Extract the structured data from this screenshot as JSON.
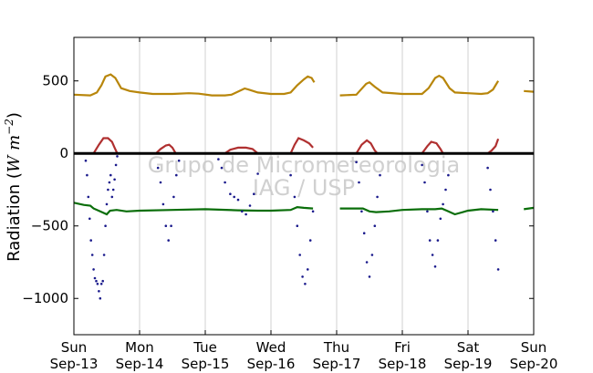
{
  "chart_data": {
    "type": "scatter",
    "title": "",
    "ylabel_text": "Radiation (",
    "ylabel_unit": "W m",
    "ylabel_exp": "−2",
    "ylabel_close": ")",
    "watermark": [
      "Grupo de Micrometeorologia",
      "IAG / USP"
    ],
    "xlim": [
      0,
      7
    ],
    "ylim": [
      -1250,
      800
    ],
    "grid": "vertical",
    "zero_line": true,
    "yticks": [
      {
        "value": 500,
        "label": "500"
      },
      {
        "value": 0,
        "label": "0"
      },
      {
        "value": -500,
        "label": "−500"
      },
      {
        "value": -1000,
        "label": "−1000"
      }
    ],
    "xticks": [
      {
        "value": 0,
        "day": "Sun",
        "date": "Sep-13"
      },
      {
        "value": 1,
        "day": "Mon",
        "date": "Sep-14"
      },
      {
        "value": 2,
        "day": "Tue",
        "date": "Sep-15"
      },
      {
        "value": 3,
        "day": "Wed",
        "date": "Sep-16"
      },
      {
        "value": 4,
        "day": "Thu",
        "date": "Sep-17"
      },
      {
        "value": 5,
        "day": "Fri",
        "date": "Sep-18"
      },
      {
        "value": 6,
        "day": "Sat",
        "date": "Sep-19"
      },
      {
        "value": 7,
        "day": "Sun",
        "date": "Sep-20"
      }
    ],
    "series": [
      {
        "key": "incoming_longwave",
        "color": "#b8860b",
        "style": "line",
        "segments": [
          [
            [
              0,
              405
            ],
            [
              0.25,
              400
            ],
            [
              0.35,
              420
            ],
            [
              0.42,
              470
            ],
            [
              0.48,
              530
            ],
            [
              0.56,
              545
            ],
            [
              0.63,
              520
            ],
            [
              0.72,
              450
            ],
            [
              0.85,
              430
            ],
            [
              1.0,
              420
            ],
            [
              1.2,
              410
            ],
            [
              1.5,
              410
            ],
            [
              1.75,
              415
            ],
            [
              1.9,
              412
            ],
            [
              2.1,
              400
            ],
            [
              2.3,
              400
            ],
            [
              2.4,
              405
            ],
            [
              2.52,
              430
            ],
            [
              2.6,
              448
            ],
            [
              2.66,
              440
            ],
            [
              2.8,
              420
            ],
            [
              3.0,
              410
            ],
            [
              3.2,
              410
            ],
            [
              3.3,
              420
            ],
            [
              3.4,
              470
            ],
            [
              3.5,
              510
            ],
            [
              3.56,
              530
            ],
            [
              3.62,
              520
            ],
            [
              3.66,
              490
            ]
          ],
          [
            [
              4.05,
              400
            ],
            [
              4.3,
              405
            ],
            [
              4.35,
              430
            ],
            [
              4.45,
              480
            ],
            [
              4.5,
              490
            ],
            [
              4.58,
              460
            ],
            [
              4.7,
              420
            ],
            [
              5.0,
              410
            ],
            [
              5.3,
              410
            ],
            [
              5.4,
              450
            ],
            [
              5.5,
              520
            ],
            [
              5.56,
              535
            ],
            [
              5.62,
              520
            ],
            [
              5.72,
              450
            ],
            [
              5.8,
              420
            ],
            [
              6.0,
              415
            ],
            [
              6.2,
              410
            ],
            [
              6.3,
              415
            ],
            [
              6.38,
              440
            ],
            [
              6.42,
              470
            ],
            [
              6.46,
              500
            ]
          ],
          [
            [
              6.85,
              430
            ],
            [
              7.0,
              425
            ]
          ]
        ]
      },
      {
        "key": "net_shortwave_reflected",
        "color": "#b03030",
        "style": "line",
        "segments": [
          [
            [
              0,
              0
            ],
            [
              0.3,
              0
            ],
            [
              0.38,
              60
            ],
            [
              0.45,
              105
            ],
            [
              0.52,
              105
            ],
            [
              0.58,
              80
            ],
            [
              0.62,
              40
            ],
            [
              0.66,
              0
            ],
            [
              1.0,
              0
            ],
            [
              1.25,
              0
            ],
            [
              1.32,
              30
            ],
            [
              1.4,
              55
            ],
            [
              1.45,
              60
            ],
            [
              1.5,
              40
            ],
            [
              1.55,
              0
            ],
            [
              2.0,
              0
            ],
            [
              2.3,
              0
            ],
            [
              2.38,
              25
            ],
            [
              2.5,
              40
            ],
            [
              2.62,
              40
            ],
            [
              2.72,
              30
            ],
            [
              2.8,
              0
            ],
            [
              3.3,
              0
            ],
            [
              3.36,
              60
            ],
            [
              3.42,
              105
            ],
            [
              3.5,
              90
            ],
            [
              3.58,
              70
            ],
            [
              3.64,
              40
            ]
          ],
          [
            [
              4.05,
              0
            ],
            [
              4.3,
              0
            ],
            [
              4.38,
              60
            ],
            [
              4.46,
              90
            ],
            [
              4.52,
              70
            ],
            [
              4.58,
              20
            ],
            [
              4.62,
              0
            ],
            [
              5.3,
              0
            ],
            [
              5.38,
              50
            ],
            [
              5.44,
              80
            ],
            [
              5.52,
              70
            ],
            [
              5.58,
              30
            ],
            [
              5.62,
              0
            ],
            [
              6.2,
              0
            ],
            [
              6.3,
              0
            ],
            [
              6.36,
              20
            ],
            [
              6.42,
              50
            ],
            [
              6.46,
              100
            ]
          ]
        ]
      },
      {
        "key": "outgoing_longwave",
        "color": "#0a6e0a",
        "style": "line",
        "segments": [
          [
            [
              0,
              -340
            ],
            [
              0.15,
              -355
            ],
            [
              0.25,
              -360
            ],
            [
              0.3,
              -380
            ],
            [
              0.4,
              -400
            ],
            [
              0.5,
              -420
            ],
            [
              0.55,
              -395
            ],
            [
              0.65,
              -390
            ],
            [
              0.8,
              -400
            ],
            [
              1.0,
              -395
            ],
            [
              1.5,
              -390
            ],
            [
              2.0,
              -385
            ],
            [
              2.5,
              -392
            ],
            [
              2.8,
              -395
            ],
            [
              3.0,
              -395
            ],
            [
              3.3,
              -390
            ],
            [
              3.4,
              -370
            ],
            [
              3.5,
              -375
            ],
            [
              3.64,
              -380
            ]
          ],
          [
            [
              4.05,
              -380
            ],
            [
              4.4,
              -380
            ],
            [
              4.5,
              -400
            ],
            [
              4.6,
              -405
            ],
            [
              4.8,
              -400
            ],
            [
              5.0,
              -390
            ],
            [
              5.3,
              -385
            ],
            [
              5.5,
              -385
            ],
            [
              5.6,
              -380
            ],
            [
              5.7,
              -400
            ],
            [
              5.8,
              -420
            ],
            [
              6.0,
              -395
            ],
            [
              6.2,
              -385
            ],
            [
              6.46,
              -390
            ]
          ],
          [
            [
              6.85,
              -385
            ],
            [
              7.0,
              -375
            ]
          ]
        ]
      },
      {
        "key": "net_shortwave_scatter",
        "color": "#1a1a8c",
        "style": "scatter",
        "segments": [
          [
            [
              0.18,
              -50
            ],
            [
              0.2,
              -150
            ],
            [
              0.22,
              -300
            ],
            [
              0.24,
              -450
            ],
            [
              0.26,
              -600
            ],
            [
              0.28,
              -700
            ],
            [
              0.3,
              -800
            ],
            [
              0.32,
              -860
            ],
            [
              0.34,
              -880
            ],
            [
              0.36,
              -900
            ],
            [
              0.38,
              -950
            ],
            [
              0.4,
              -1000
            ],
            [
              0.42,
              -900
            ],
            [
              0.44,
              -880
            ],
            [
              0.46,
              -700
            ],
            [
              0.48,
              -500
            ],
            [
              0.5,
              -350
            ],
            [
              0.52,
              -250
            ],
            [
              0.54,
              -200
            ],
            [
              0.56,
              -150
            ],
            [
              0.58,
              -300
            ],
            [
              0.6,
              -250
            ],
            [
              0.62,
              -180
            ],
            [
              0.64,
              -80
            ],
            [
              0.66,
              -20
            ],
            [
              1.28,
              -100
            ],
            [
              1.32,
              -200
            ],
            [
              1.36,
              -350
            ],
            [
              1.4,
              -500
            ],
            [
              1.44,
              -600
            ],
            [
              1.48,
              -500
            ],
            [
              1.52,
              -300
            ],
            [
              1.56,
              -150
            ],
            [
              1.6,
              -50
            ],
            [
              2.2,
              -40
            ],
            [
              2.25,
              -100
            ],
            [
              2.3,
              -200
            ],
            [
              2.38,
              -280
            ],
            [
              2.44,
              -300
            ],
            [
              2.5,
              -320
            ],
            [
              2.56,
              -400
            ],
            [
              2.62,
              -420
            ],
            [
              2.68,
              -360
            ],
            [
              2.74,
              -280
            ],
            [
              2.8,
              -140
            ],
            [
              3.3,
              -150
            ],
            [
              3.36,
              -300
            ],
            [
              3.4,
              -500
            ],
            [
              3.44,
              -700
            ],
            [
              3.48,
              -850
            ],
            [
              3.52,
              -900
            ],
            [
              3.56,
              -800
            ],
            [
              3.6,
              -600
            ],
            [
              3.64,
              -400
            ]
          ],
          [
            [
              4.3,
              -60
            ],
            [
              4.34,
              -200
            ],
            [
              4.38,
              -400
            ],
            [
              4.42,
              -550
            ],
            [
              4.46,
              -750
            ],
            [
              4.5,
              -850
            ],
            [
              4.54,
              -700
            ],
            [
              4.58,
              -500
            ],
            [
              4.62,
              -300
            ],
            [
              4.66,
              -150
            ],
            [
              5.3,
              -80
            ],
            [
              5.34,
              -200
            ],
            [
              5.38,
              -400
            ],
            [
              5.42,
              -600
            ],
            [
              5.46,
              -700
            ],
            [
              5.5,
              -780
            ],
            [
              5.54,
              -600
            ],
            [
              5.58,
              -450
            ],
            [
              5.62,
              -350
            ],
            [
              5.66,
              -250
            ],
            [
              5.7,
              -150
            ],
            [
              6.3,
              -100
            ],
            [
              6.34,
              -250
            ],
            [
              6.38,
              -400
            ],
            [
              6.42,
              -600
            ],
            [
              6.46,
              -800
            ]
          ]
        ]
      }
    ]
  }
}
